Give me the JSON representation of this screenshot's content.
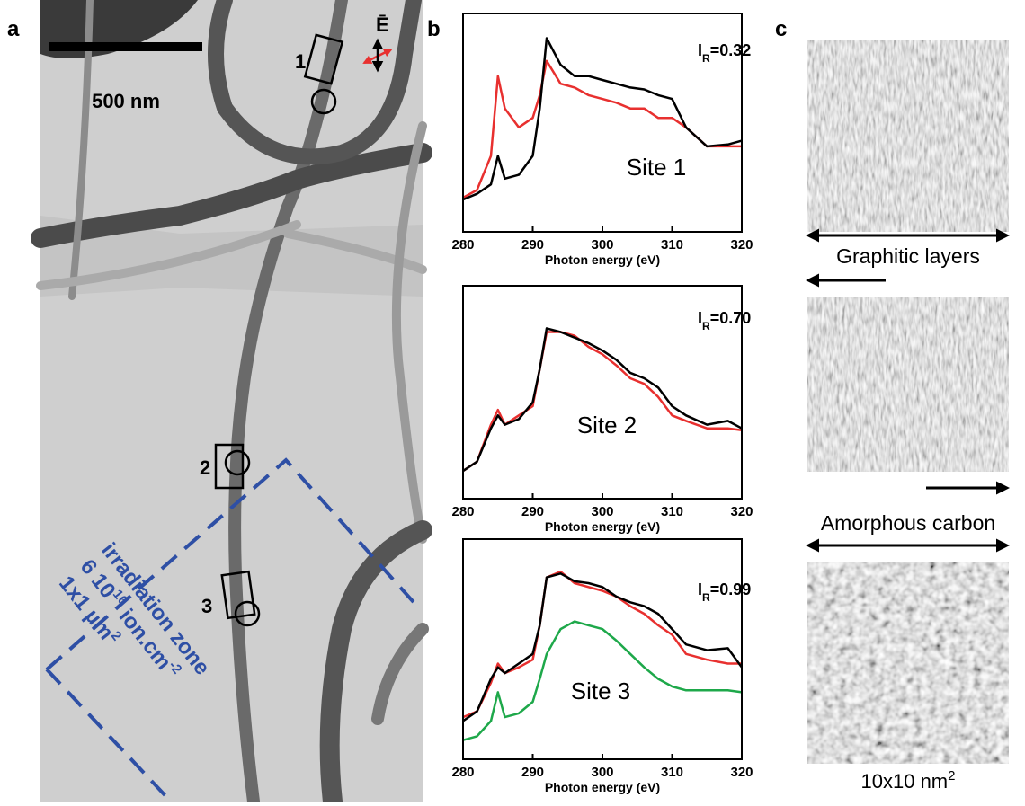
{
  "panel_labels": [
    "a",
    "b",
    "c"
  ],
  "panel_a": {
    "scale_bar": "500 nm",
    "sites": [
      "1",
      "2",
      "3"
    ],
    "field": "Ē",
    "zone": {
      "line1": "irradiation zone",
      "line2_a": "6 10",
      "line2_sup": "16",
      "line2_b": " ion.cm",
      "line2_sup2": "-2",
      "line3": "1x1 µm",
      "line3_sup": "2"
    }
  },
  "panel_c": {
    "top_caption": "Graphitic layers",
    "bottom_caption": "Amorphous carbon",
    "scale": "10x10 nm",
    "scale_sup": "2"
  },
  "chart_data": [
    {
      "type": "line",
      "annotation": "Site 1",
      "ratio": {
        "symbol": "I",
        "sub": "R",
        "value": "=0.32"
      },
      "x_label": "Photon energy (eV)",
      "xlim": [
        280,
        320
      ],
      "xticks": [
        280,
        290,
        300,
        310,
        320
      ],
      "ylim": [
        -0.1,
        1.05
      ],
      "x": [
        280,
        282,
        284,
        285,
        286,
        288,
        290,
        291,
        292,
        294,
        296,
        298,
        300,
        302,
        304,
        306,
        308,
        310,
        312,
        315,
        318,
        320
      ],
      "series": [
        {
          "color": "#e8302f",
          "values": [
            0.08,
            0.12,
            0.3,
            0.72,
            0.55,
            0.45,
            0.5,
            0.62,
            0.8,
            0.68,
            0.66,
            0.62,
            0.6,
            0.58,
            0.55,
            0.55,
            0.5,
            0.5,
            0.45,
            0.35,
            0.35,
            0.35
          ]
        },
        {
          "color": "#000000",
          "values": [
            0.07,
            0.1,
            0.15,
            0.3,
            0.18,
            0.2,
            0.3,
            0.55,
            0.92,
            0.78,
            0.72,
            0.72,
            0.7,
            0.68,
            0.66,
            0.65,
            0.62,
            0.6,
            0.45,
            0.35,
            0.36,
            0.38
          ]
        }
      ]
    },
    {
      "type": "line",
      "annotation": "Site 2",
      "ratio": {
        "symbol": "I",
        "sub": "R",
        "value": "=0.70"
      },
      "x_label": "Photon energy (eV)",
      "xlim": [
        280,
        320
      ],
      "xticks": [
        280,
        290,
        300,
        310,
        320
      ],
      "ylim": [
        -0.1,
        1.05
      ],
      "x": [
        280,
        282,
        284,
        285,
        286,
        288,
        290,
        291,
        292,
        294,
        296,
        298,
        300,
        302,
        304,
        306,
        308,
        310,
        312,
        315,
        318,
        320
      ],
      "series": [
        {
          "color": "#e8302f",
          "values": [
            0.05,
            0.1,
            0.3,
            0.38,
            0.3,
            0.35,
            0.4,
            0.6,
            0.8,
            0.8,
            0.78,
            0.72,
            0.68,
            0.62,
            0.55,
            0.52,
            0.45,
            0.35,
            0.32,
            0.28,
            0.28,
            0.27
          ]
        },
        {
          "color": "#000000",
          "values": [
            0.05,
            0.1,
            0.28,
            0.35,
            0.3,
            0.33,
            0.42,
            0.6,
            0.82,
            0.8,
            0.77,
            0.74,
            0.7,
            0.65,
            0.58,
            0.55,
            0.5,
            0.4,
            0.35,
            0.3,
            0.32,
            0.28
          ]
        }
      ]
    },
    {
      "type": "line",
      "annotation": "Site 3",
      "ratio": {
        "symbol": "I",
        "sub": "R",
        "value": "=0.99"
      },
      "x_label": "Photon energy (eV)",
      "xlim": [
        280,
        320
      ],
      "xticks": [
        280,
        290,
        300,
        310,
        320
      ],
      "ylim": [
        -0.1,
        1.05
      ],
      "x": [
        280,
        282,
        284,
        285,
        286,
        288,
        290,
        291,
        292,
        294,
        296,
        298,
        300,
        302,
        304,
        306,
        308,
        310,
        312,
        315,
        318,
        320
      ],
      "series": [
        {
          "color": "#e8302f",
          "values": [
            0.12,
            0.15,
            0.3,
            0.4,
            0.35,
            0.38,
            0.42,
            0.6,
            0.85,
            0.88,
            0.82,
            0.8,
            0.78,
            0.75,
            0.7,
            0.66,
            0.6,
            0.55,
            0.45,
            0.42,
            0.4,
            0.4
          ]
        },
        {
          "color": "#000000",
          "values": [
            0.1,
            0.15,
            0.32,
            0.38,
            0.35,
            0.4,
            0.45,
            0.6,
            0.85,
            0.87,
            0.83,
            0.82,
            0.8,
            0.75,
            0.72,
            0.7,
            0.66,
            0.58,
            0.5,
            0.47,
            0.48,
            0.38
          ]
        },
        {
          "color": "#1ea84a",
          "values": [
            0.0,
            0.02,
            0.1,
            0.25,
            0.12,
            0.14,
            0.2,
            0.32,
            0.45,
            0.58,
            0.62,
            0.6,
            0.58,
            0.52,
            0.45,
            0.38,
            0.32,
            0.28,
            0.26,
            0.26,
            0.26,
            0.25
          ]
        }
      ]
    }
  ]
}
